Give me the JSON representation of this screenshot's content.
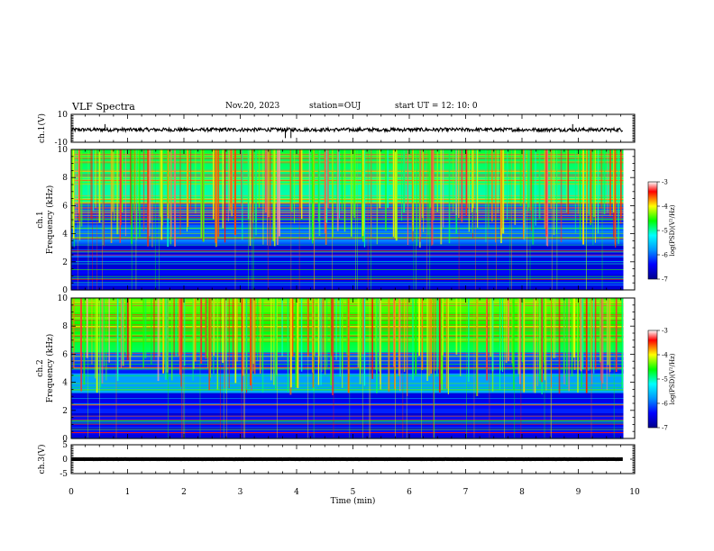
{
  "header": {
    "title": "VLF Spectra",
    "date": "Nov.20, 2023",
    "station": "station=OUJ",
    "start": "start  UT =  12: 10: 0"
  },
  "colors": {
    "spectrum_scale": [
      "#00008b",
      "#0000ff",
      "#0096ff",
      "#00ffff",
      "#00ff00",
      "#ffff00",
      "#ff0000",
      "#ffffff"
    ],
    "trace": "#000000"
  },
  "chart_data": [
    {
      "type": "line",
      "id": "ch1-voltage",
      "ylabel": "ch.1(V)",
      "ylim": [
        -10,
        10
      ],
      "yticks": [
        "10",
        "-10"
      ],
      "xlim": [
        0,
        10
      ],
      "series": [
        {
          "x": [
            0,
            9.8
          ],
          "mean": -1,
          "noise_amplitude": 1
        }
      ]
    },
    {
      "type": "heatmap",
      "id": "ch1-spectrogram",
      "ylabel": "ch.1\nFrequency (kHz)",
      "ylim": [
        0,
        10
      ],
      "yticks": [
        "0",
        "2",
        "4",
        "6",
        "8",
        "10"
      ],
      "xlim": [
        0,
        10
      ],
      "data_extent_x": [
        0,
        9.8
      ],
      "colorbar": {
        "label": "log(PSD)(V²/Hz)",
        "range": [
          -7,
          -3
        ],
        "ticks": [
          "-3",
          "-4",
          "-5",
          "-6",
          "-7"
        ]
      }
    },
    {
      "type": "heatmap",
      "id": "ch2-spectrogram",
      "ylabel": "ch.2\nFrequency (kHz)",
      "ylim": [
        0,
        10
      ],
      "yticks": [
        "0",
        "2",
        "4",
        "6",
        "8",
        "10"
      ],
      "xlim": [
        0,
        10
      ],
      "data_extent_x": [
        0,
        9.8
      ],
      "colorbar": {
        "label": "log(PSD)(V²/Hz)",
        "range": [
          -7,
          -3
        ],
        "ticks": [
          "-3",
          "-4",
          "-5",
          "-6",
          "-7"
        ]
      }
    },
    {
      "type": "line",
      "id": "ch3-voltage",
      "ylabel": "ch.3(V)",
      "ylim": [
        -5,
        5
      ],
      "yticks": [
        "5",
        "0",
        "-5"
      ],
      "xlim": [
        0,
        10
      ],
      "series": [
        {
          "x": [
            0,
            9.8
          ],
          "mean": 0,
          "noise_amplitude": 0.1
        }
      ]
    }
  ],
  "xaxis": {
    "label": "Time (min)",
    "ticks": [
      "0",
      "1",
      "2",
      "3",
      "4",
      "5",
      "6",
      "7",
      "8",
      "9",
      "10"
    ]
  }
}
